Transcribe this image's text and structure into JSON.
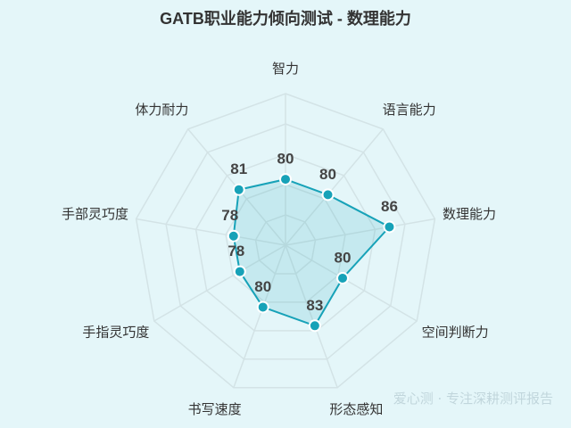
{
  "chart_data": {
    "type": "radar",
    "title": "GATB职业能力倾向测试 - 数理能力",
    "categories": [
      "智力",
      "语言能力",
      "数理能力",
      "空间判断力",
      "形态感知",
      "书写速度",
      "手指灵巧度",
      "手部灵巧度",
      "体力耐力"
    ],
    "values": [
      80,
      80,
      86,
      80,
      83,
      80,
      78,
      78,
      81
    ],
    "color": "#17a2b8",
    "rlim": [
      70,
      93
    ],
    "watermark": "爱心测 · 专注深耕测评报告"
  }
}
